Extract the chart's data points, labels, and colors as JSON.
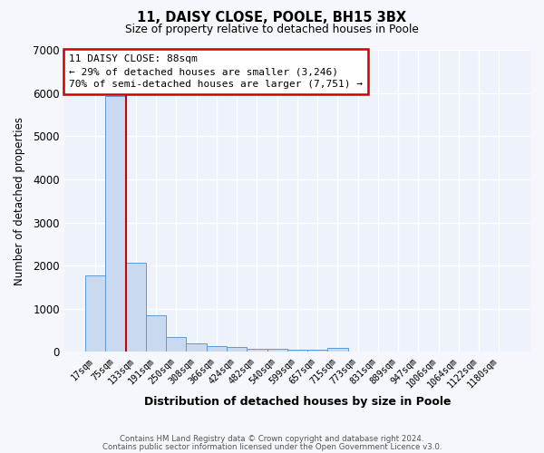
{
  "title_line1": "11, DAISY CLOSE, POOLE, BH15 3BX",
  "title_line2": "Size of property relative to detached houses in Poole",
  "xlabel": "Distribution of detached houses by size in Poole",
  "ylabel": "Number of detached properties",
  "bar_color": "#c8d9f0",
  "bar_edge_color": "#5b9bd5",
  "categories": [
    "17sqm",
    "75sqm",
    "133sqm",
    "191sqm",
    "250sqm",
    "308sqm",
    "366sqm",
    "424sqm",
    "482sqm",
    "540sqm",
    "599sqm",
    "657sqm",
    "715sqm",
    "773sqm",
    "831sqm",
    "889sqm",
    "947sqm",
    "1006sqm",
    "1064sqm",
    "1122sqm",
    "1180sqm"
  ],
  "values": [
    1780,
    5920,
    2060,
    840,
    340,
    200,
    130,
    110,
    75,
    65,
    55,
    50,
    85,
    0,
    0,
    0,
    0,
    0,
    0,
    0,
    0
  ],
  "ylim": [
    0,
    7000
  ],
  "yticks": [
    0,
    1000,
    2000,
    3000,
    4000,
    5000,
    6000,
    7000
  ],
  "annotation_line1": "11 DAISY CLOSE: 88sqm",
  "annotation_line2": "← 29% of detached houses are smaller (3,246)",
  "annotation_line3": "70% of semi-detached houses are larger (7,751) →",
  "annotation_box_color": "#ffffff",
  "annotation_box_edge": "#cc0000",
  "vline_x_index": 1,
  "background_color": "#eef2fa",
  "grid_color": "#ffffff",
  "footer_line1": "Contains HM Land Registry data © Crown copyright and database right 2024.",
  "footer_line2": "Contains public sector information licensed under the Open Government Licence v3.0."
}
